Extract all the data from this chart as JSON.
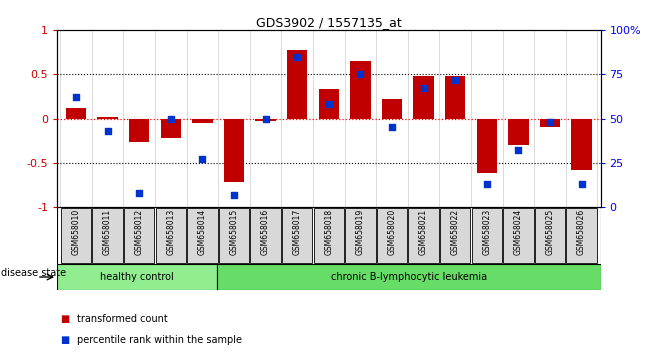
{
  "title": "GDS3902 / 1557135_at",
  "samples": [
    "GSM658010",
    "GSM658011",
    "GSM658012",
    "GSM658013",
    "GSM658014",
    "GSM658015",
    "GSM658016",
    "GSM658017",
    "GSM658018",
    "GSM658019",
    "GSM658020",
    "GSM658021",
    "GSM658022",
    "GSM658023",
    "GSM658024",
    "GSM658025",
    "GSM658026"
  ],
  "bar_values": [
    0.12,
    0.02,
    -0.27,
    -0.22,
    -0.05,
    -0.72,
    -0.03,
    0.78,
    0.33,
    0.65,
    0.22,
    0.48,
    0.48,
    -0.62,
    -0.3,
    -0.09,
    -0.58
  ],
  "dot_values": [
    0.62,
    0.43,
    0.08,
    0.5,
    0.27,
    0.07,
    0.5,
    0.85,
    0.58,
    0.75,
    0.45,
    0.67,
    0.72,
    0.13,
    0.32,
    0.48,
    0.13
  ],
  "bar_color": "#C00000",
  "dot_color": "#0033CC",
  "group1_label": "healthy control",
  "group2_label": "chronic B-lymphocytic leukemia",
  "group1_color": "#90EE90",
  "group2_color": "#66DD66",
  "group1_count": 5,
  "group2_count": 12,
  "disease_state_label": "disease state",
  "legend_bar_label": "transformed count",
  "legend_dot_label": "percentile rank within the sample",
  "bar_width": 0.65,
  "background_color": "#FFFFFF",
  "label_box_color": "#D8D8D8",
  "yticks_left": [
    -1,
    -0.5,
    0,
    0.5,
    1
  ],
  "ytick_labels_left": [
    "-1",
    "-0.5",
    "0",
    "0.5",
    "1"
  ],
  "yticks_right": [
    -1,
    -0.5,
    0,
    0.5,
    1
  ],
  "ytick_labels_right": [
    "0",
    "25",
    "50",
    "75",
    "100%"
  ]
}
